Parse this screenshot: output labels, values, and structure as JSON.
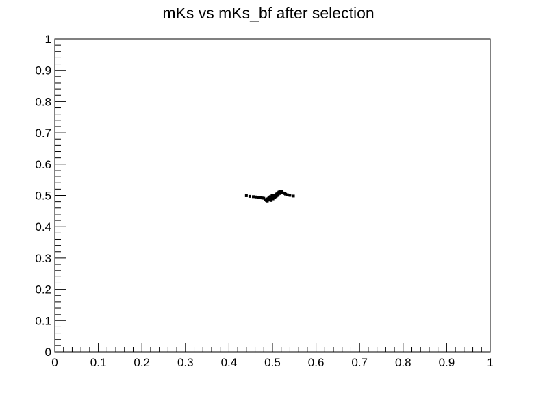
{
  "chart_data": {
    "type": "scatter",
    "title": "mKs vs mKs_bf after selection",
    "xlabel": "",
    "ylabel": "",
    "xlim": [
      0,
      1
    ],
    "ylim": [
      0,
      1
    ],
    "x_ticks": [
      "0",
      "0.1",
      "0.2",
      "0.3",
      "0.4",
      "0.5",
      "0.6",
      "0.7",
      "0.8",
      "0.9",
      "1"
    ],
    "y_ticks": [
      "0",
      "0.1",
      "0.2",
      "0.3",
      "0.4",
      "0.5",
      "0.6",
      "0.7",
      "0.8",
      "0.9",
      "1"
    ],
    "grid": false,
    "legend": "none",
    "marker_color": "#000000",
    "series": [
      {
        "points": [
          [
            0.44,
            0.499
          ],
          [
            0.448,
            0.497
          ],
          [
            0.456,
            0.496
          ],
          [
            0.462,
            0.495
          ],
          [
            0.468,
            0.494
          ],
          [
            0.472,
            0.493
          ],
          [
            0.476,
            0.492
          ],
          [
            0.48,
            0.491
          ],
          [
            0.484,
            0.487
          ],
          [
            0.486,
            0.484
          ],
          [
            0.488,
            0.482
          ],
          [
            0.49,
            0.485
          ],
          [
            0.492,
            0.488
          ],
          [
            0.494,
            0.486
          ],
          [
            0.496,
            0.49
          ],
          [
            0.497,
            0.484
          ],
          [
            0.498,
            0.493
          ],
          [
            0.5,
            0.495
          ],
          [
            0.501,
            0.489
          ],
          [
            0.502,
            0.497
          ],
          [
            0.503,
            0.492
          ],
          [
            0.504,
            0.499
          ],
          [
            0.505,
            0.494
          ],
          [
            0.506,
            0.501
          ],
          [
            0.507,
            0.496
          ],
          [
            0.508,
            0.503
          ],
          [
            0.509,
            0.498
          ],
          [
            0.51,
            0.505
          ],
          [
            0.511,
            0.5
          ],
          [
            0.512,
            0.507
          ],
          [
            0.513,
            0.502
          ],
          [
            0.514,
            0.509
          ],
          [
            0.515,
            0.511
          ],
          [
            0.516,
            0.506
          ],
          [
            0.517,
            0.512
          ],
          [
            0.518,
            0.508
          ],
          [
            0.519,
            0.513
          ],
          [
            0.52,
            0.51
          ],
          [
            0.522,
            0.514
          ],
          [
            0.524,
            0.508
          ],
          [
            0.527,
            0.506
          ],
          [
            0.53,
            0.504
          ],
          [
            0.534,
            0.502
          ],
          [
            0.54,
            0.5
          ],
          [
            0.548,
            0.498
          ],
          [
            0.489,
            0.489
          ],
          [
            0.491,
            0.491
          ],
          [
            0.493,
            0.494
          ],
          [
            0.495,
            0.496
          ],
          [
            0.499,
            0.5
          ]
        ]
      }
    ]
  }
}
